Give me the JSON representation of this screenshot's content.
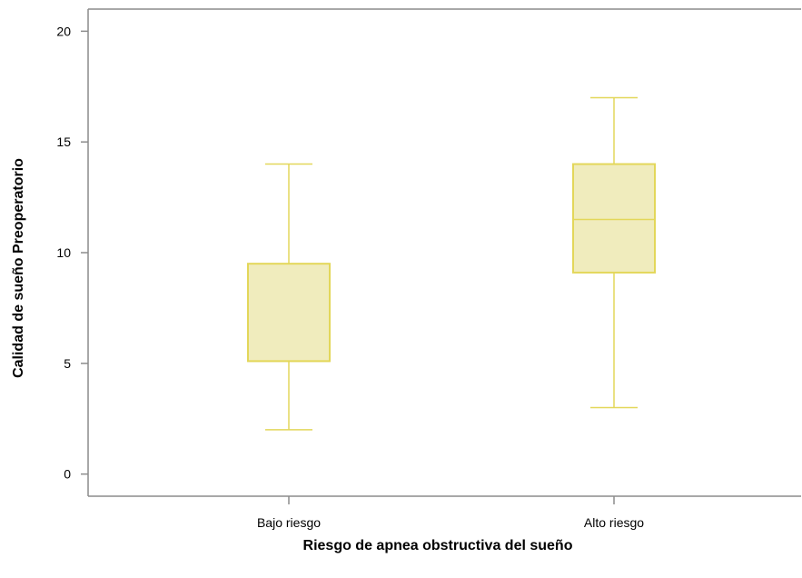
{
  "chart_data": {
    "type": "boxplot",
    "title": "",
    "xlabel": "Riesgo de apnea obstructiva del sueño",
    "ylabel": "Calidad de sueño Preoperatorio",
    "ylim": [
      -1,
      21
    ],
    "yticks": [
      0,
      5,
      10,
      15,
      20
    ],
    "categories": [
      "Bajo riesgo",
      "Alto riesgo"
    ],
    "boxes": [
      {
        "category": "Bajo riesgo",
        "min": 2,
        "q1": 5.1,
        "median": 5.1,
        "q3": 9.5,
        "max": 14
      },
      {
        "category": "Alto riesgo",
        "min": 3,
        "q1": 9.1,
        "median": 11.5,
        "q3": 14,
        "max": 17
      }
    ],
    "grid": false,
    "colors": {
      "box_fill": "#f0ecbd",
      "box_stroke": "#e3d75a",
      "axis": "#8c8c8c"
    }
  }
}
